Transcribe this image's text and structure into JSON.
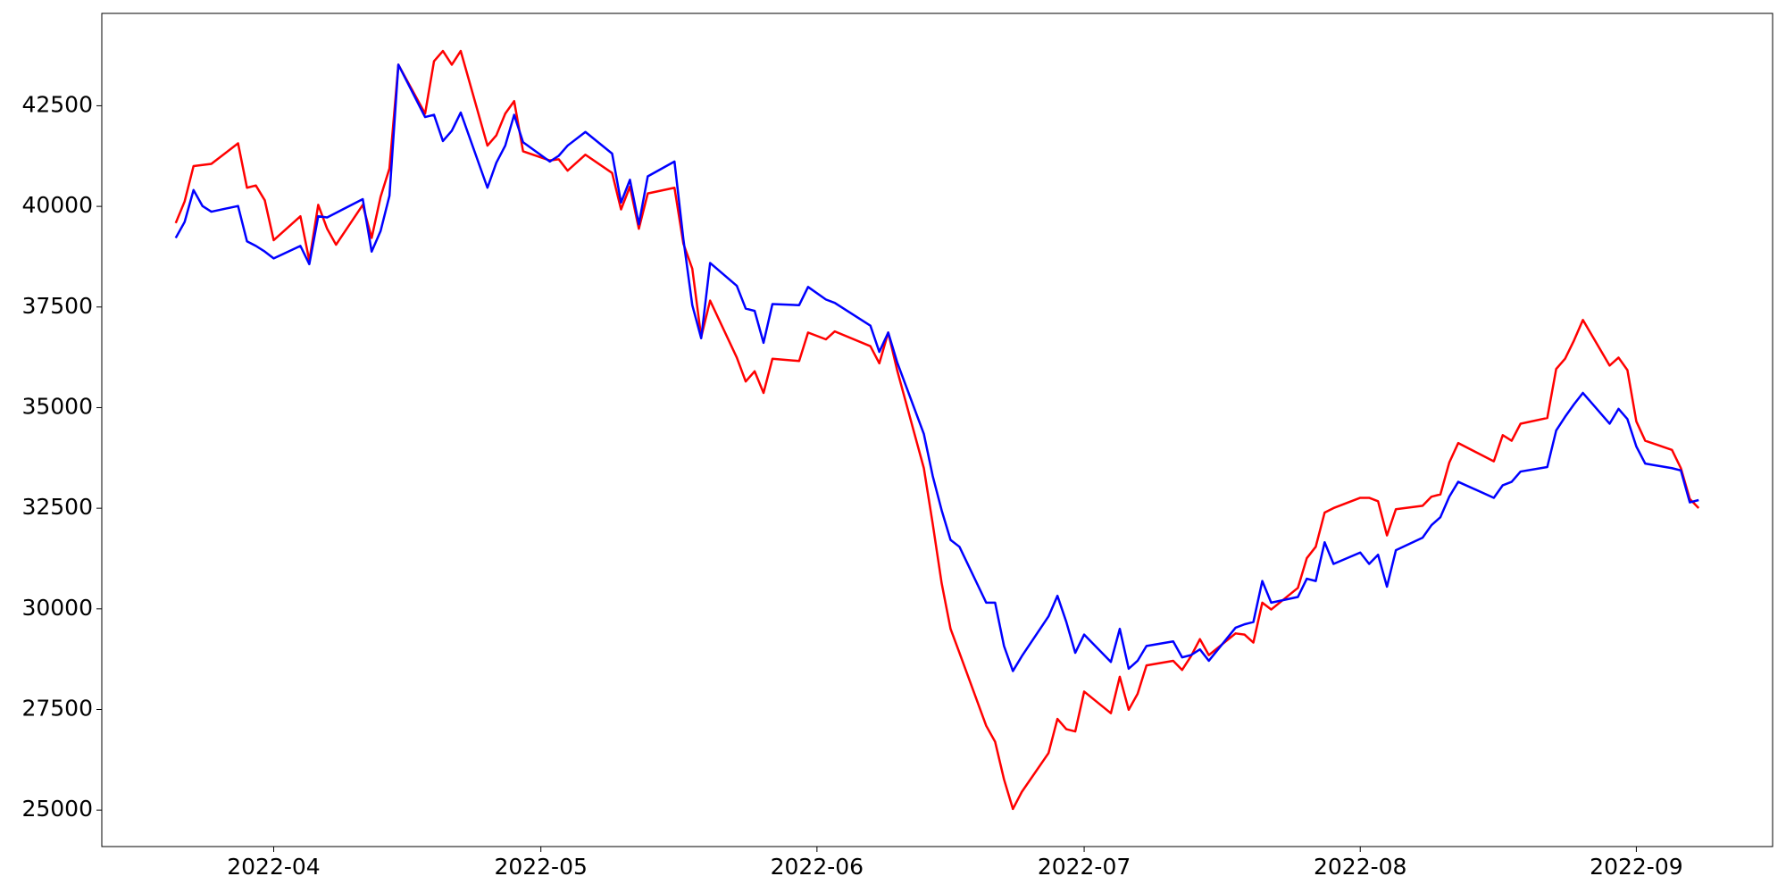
{
  "chart_data": {
    "type": "line",
    "x": [
      19072,
      19073,
      19074,
      19075,
      19076,
      19079,
      19080,
      19081,
      19082,
      19083,
      19086,
      19087,
      19088,
      19089,
      19090,
      19093,
      19094,
      19095,
      19096,
      19097,
      19100,
      19101,
      19102,
      19103,
      19104,
      19107,
      19108,
      19109,
      19110,
      19111,
      19114,
      19115,
      19116,
      19118,
      19121,
      19122,
      19123,
      19124,
      19125,
      19128,
      19129,
      19130,
      19131,
      19132,
      19135,
      19136,
      19137,
      19138,
      19139,
      19142,
      19143,
      19145,
      19146,
      19150,
      19151,
      19152,
      19153,
      19156,
      19157,
      19158,
      19159,
      19160,
      19163,
      19164,
      19165,
      19166,
      19167,
      19170,
      19171,
      19172,
      19173,
      19174,
      19177,
      19178,
      19179,
      19180,
      19181,
      19184,
      19185,
      19186,
      19187,
      19188,
      19191,
      19192,
      19193,
      19194,
      19195,
      19198,
      19199,
      19200,
      19201,
      19202,
      19205,
      19206,
      19207,
      19208,
      19209,
      19212,
      19213,
      19214,
      19215,
      19216,
      19220,
      19221,
      19222,
      19223,
      19226,
      19227,
      19228,
      19229,
      19230,
      19233,
      19234,
      19235,
      19236,
      19237,
      19240,
      19241,
      19242,
      19243
    ],
    "series": [
      {
        "color": "red",
        "values": [
          39585,
          40123,
          41001,
          41029,
          41057,
          41567,
          40463,
          40519,
          40151,
          39160,
          39755,
          38650,
          40038,
          39444,
          39047,
          40038,
          39216,
          40236,
          40944,
          43521,
          42304,
          43606,
          43861,
          43521,
          43861,
          41510,
          41765,
          42304,
          42615,
          41369,
          41142,
          41171,
          40888,
          41284,
          40831,
          39925,
          40491,
          39444,
          40321,
          40463,
          39075,
          38452,
          36753,
          37659,
          36243,
          35649,
          35903,
          35365,
          36215,
          36158,
          36866,
          36696,
          36894,
          36526,
          36101,
          36866,
          35931,
          33496,
          32108,
          30636,
          29503,
          28908,
          27096,
          26699,
          25765,
          25028,
          25453,
          26416,
          27266,
          27011,
          26954,
          27945,
          27407,
          28313,
          27492,
          27888,
          28596,
          28710,
          28483,
          28823,
          29248,
          28851,
          29390,
          29361,
          29163,
          30154,
          29984,
          30522,
          31259,
          31542,
          32391,
          32504,
          32759,
          32759,
          32674,
          31825,
          32476,
          32561,
          32788,
          32844,
          33638,
          34119,
          33666,
          34317,
          34176,
          34600,
          34742,
          35960,
          36215,
          36668,
          37178,
          36045,
          36243,
          35931,
          34657,
          34176,
          33949,
          33496,
          32731,
          32504
        ]
      },
      {
        "color": "blue",
        "values": [
          39216,
          39613,
          40406,
          40010,
          39868,
          40010,
          39132,
          39018,
          38877,
          38707,
          39018,
          38565,
          39755,
          39726,
          39839,
          40180,
          38877,
          39386,
          40264,
          43521,
          42219,
          42275,
          41624,
          41879,
          42332,
          40463,
          41086,
          41510,
          42275,
          41595,
          41114,
          41256,
          41510,
          41850,
          41312,
          40095,
          40661,
          39556,
          40746,
          41114,
          39188,
          37546,
          36724,
          38594,
          38027,
          37461,
          37404,
          36611,
          37574,
          37546,
          37999,
          37687,
          37602,
          37036,
          36385,
          36866,
          36130,
          34346,
          33298,
          32448,
          31712,
          31542,
          30154,
          30154,
          29078,
          28455,
          28823,
          29814,
          30324,
          29673,
          28908,
          29361,
          28681,
          29503,
          28512,
          28710,
          29078,
          29191,
          28795,
          28851,
          28993,
          28710,
          29531,
          29616,
          29673,
          30692,
          30154,
          30296,
          30749,
          30692,
          31655,
          31117,
          31400,
          31117,
          31344,
          30551,
          31457,
          31768,
          32080,
          32278,
          32788,
          33156,
          32759,
          33071,
          33156,
          33411,
          33524,
          34431,
          34771,
          35082,
          35365,
          34600,
          34969,
          34714,
          34034,
          33609,
          33496,
          33439,
          32646,
          32703
        ]
      }
    ],
    "xlim": [
      19063.7,
      19251.3
    ],
    "xticks": [
      {
        "value": 19083,
        "label": "2022-04"
      },
      {
        "value": 19113,
        "label": "2022-05"
      },
      {
        "value": 19144,
        "label": "2022-06"
      },
      {
        "value": 19174,
        "label": "2022-07"
      },
      {
        "value": 19205,
        "label": "2022-08"
      },
      {
        "value": 19236,
        "label": "2022-09"
      }
    ],
    "ylim": [
      24094,
      44795
    ],
    "yticks": [
      25000,
      27500,
      30000,
      32500,
      35000,
      37500,
      40000,
      42500
    ]
  }
}
